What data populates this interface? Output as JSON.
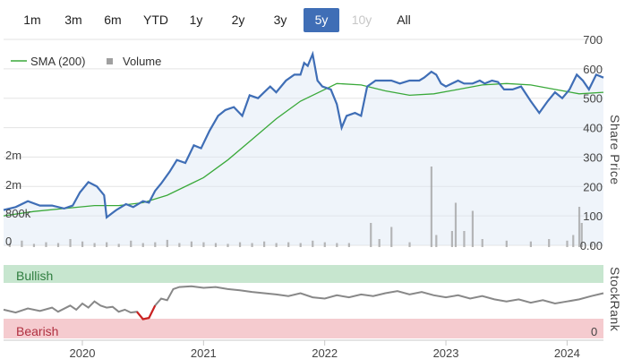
{
  "range_selector": {
    "buttons": [
      {
        "label": "1m",
        "state": "normal"
      },
      {
        "label": "3m",
        "state": "normal"
      },
      {
        "label": "6m",
        "state": "normal"
      },
      {
        "label": "YTD",
        "state": "normal"
      },
      {
        "label": "1y",
        "state": "normal"
      },
      {
        "label": "2y",
        "state": "normal"
      },
      {
        "label": "3y",
        "state": "normal"
      },
      {
        "label": "5y",
        "state": "active"
      },
      {
        "label": "10y",
        "state": "disabled"
      },
      {
        "label": "All",
        "state": "normal"
      }
    ],
    "active_color": "#3f6eb6"
  },
  "chart_data": [
    {
      "type": "line",
      "legend": [
        {
          "label": "SMA (200)",
          "color": "#3aa93a"
        },
        {
          "label": "Volume",
          "color": "#a0a0a0"
        }
      ],
      "ylabel": "Share Price",
      "ylim": [
        0,
        700
      ],
      "y_ticks": [
        "0.00",
        "100",
        "200",
        "300",
        "400",
        "500",
        "600",
        "700"
      ],
      "volume_ticks": [
        "0",
        "800k",
        "2m",
        "2m"
      ],
      "x_ticks": [
        "2020",
        "2021",
        "2022",
        "2023",
        "2024"
      ],
      "x_range": [
        2019.35,
        2024.3
      ],
      "grid": true,
      "series": [
        {
          "name": "Share Price",
          "color": "#3f6eb6",
          "points": [
            [
              2019.35,
              120
            ],
            [
              2019.45,
              130
            ],
            [
              2019.55,
              150
            ],
            [
              2019.65,
              135
            ],
            [
              2019.75,
              135
            ],
            [
              2019.85,
              125
            ],
            [
              2019.92,
              135
            ],
            [
              2019.98,
              180
            ],
            [
              2020.05,
              215
            ],
            [
              2020.12,
              200
            ],
            [
              2020.18,
              170
            ],
            [
              2020.2,
              95
            ],
            [
              2020.28,
              120
            ],
            [
              2020.36,
              140
            ],
            [
              2020.42,
              130
            ],
            [
              2020.5,
              150
            ],
            [
              2020.55,
              145
            ],
            [
              2020.6,
              185
            ],
            [
              2020.65,
              210
            ],
            [
              2020.72,
              250
            ],
            [
              2020.78,
              290
            ],
            [
              2020.85,
              280
            ],
            [
              2020.92,
              340
            ],
            [
              2020.98,
              330
            ],
            [
              2021.05,
              390
            ],
            [
              2021.12,
              440
            ],
            [
              2021.18,
              460
            ],
            [
              2021.25,
              470
            ],
            [
              2021.32,
              440
            ],
            [
              2021.38,
              510
            ],
            [
              2021.45,
              500
            ],
            [
              2021.5,
              520
            ],
            [
              2021.55,
              540
            ],
            [
              2021.6,
              520
            ],
            [
              2021.68,
              560
            ],
            [
              2021.75,
              580
            ],
            [
              2021.8,
              580
            ],
            [
              2021.83,
              620
            ],
            [
              2021.86,
              610
            ],
            [
              2021.88,
              630
            ],
            [
              2021.9,
              650
            ],
            [
              2021.94,
              560
            ],
            [
              2021.98,
              540
            ],
            [
              2022.05,
              530
            ],
            [
              2022.1,
              480
            ],
            [
              2022.14,
              400
            ],
            [
              2022.18,
              440
            ],
            [
              2022.25,
              450
            ],
            [
              2022.3,
              440
            ],
            [
              2022.35,
              540
            ],
            [
              2022.42,
              560
            ],
            [
              2022.5,
              560
            ],
            [
              2022.55,
              560
            ],
            [
              2022.62,
              550
            ],
            [
              2022.7,
              560
            ],
            [
              2022.78,
              560
            ],
            [
              2022.82,
              570
            ],
            [
              2022.88,
              590
            ],
            [
              2022.92,
              580
            ],
            [
              2022.96,
              550
            ],
            [
              2023.0,
              540
            ],
            [
              2023.05,
              550
            ],
            [
              2023.1,
              560
            ],
            [
              2023.15,
              550
            ],
            [
              2023.22,
              550
            ],
            [
              2023.28,
              560
            ],
            [
              2023.32,
              550
            ],
            [
              2023.38,
              560
            ],
            [
              2023.43,
              555
            ],
            [
              2023.48,
              530
            ],
            [
              2023.55,
              530
            ],
            [
              2023.62,
              540
            ],
            [
              2023.7,
              490
            ],
            [
              2023.77,
              450
            ],
            [
              2023.84,
              490
            ],
            [
              2023.9,
              520
            ],
            [
              2023.96,
              500
            ],
            [
              2024.02,
              530
            ],
            [
              2024.08,
              580
            ],
            [
              2024.13,
              560
            ],
            [
              2024.18,
              530
            ],
            [
              2024.24,
              580
            ],
            [
              2024.3,
              570
            ]
          ]
        },
        {
          "name": "SMA (200)",
          "color": "#3aa93a",
          "points": [
            [
              2019.35,
              100
            ],
            [
              2019.6,
              115
            ],
            [
              2019.85,
              125
            ],
            [
              2020.1,
              135
            ],
            [
              2020.3,
              135
            ],
            [
              2020.5,
              145
            ],
            [
              2020.7,
              170
            ],
            [
              2020.9,
              210
            ],
            [
              2021.0,
              230
            ],
            [
              2021.2,
              290
            ],
            [
              2021.4,
              360
            ],
            [
              2021.6,
              430
            ],
            [
              2021.8,
              490
            ],
            [
              2022.0,
              530
            ],
            [
              2022.1,
              550
            ],
            [
              2022.3,
              545
            ],
            [
              2022.5,
              525
            ],
            [
              2022.7,
              510
            ],
            [
              2022.9,
              515
            ],
            [
              2023.1,
              530
            ],
            [
              2023.3,
              545
            ],
            [
              2023.5,
              550
            ],
            [
              2023.7,
              545
            ],
            [
              2023.9,
              530
            ],
            [
              2024.1,
              515
            ],
            [
              2024.3,
              520
            ]
          ]
        }
      ],
      "volume_bars": [
        [
          2019.4,
          0.05
        ],
        [
          2019.5,
          0.08
        ],
        [
          2019.6,
          0.04
        ],
        [
          2019.7,
          0.06
        ],
        [
          2019.8,
          0.05
        ],
        [
          2019.9,
          0.1
        ],
        [
          2020.0,
          0.07
        ],
        [
          2020.1,
          0.05
        ],
        [
          2020.2,
          0.06
        ],
        [
          2020.3,
          0.04
        ],
        [
          2020.4,
          0.08
        ],
        [
          2020.5,
          0.05
        ],
        [
          2020.6,
          0.06
        ],
        [
          2020.7,
          0.09
        ],
        [
          2020.8,
          0.05
        ],
        [
          2020.9,
          0.07
        ],
        [
          2021.0,
          0.06
        ],
        [
          2021.1,
          0.05
        ],
        [
          2021.2,
          0.04
        ],
        [
          2021.3,
          0.06
        ],
        [
          2021.4,
          0.05
        ],
        [
          2021.5,
          0.07
        ],
        [
          2021.6,
          0.05
        ],
        [
          2021.7,
          0.06
        ],
        [
          2021.8,
          0.05
        ],
        [
          2021.9,
          0.08
        ],
        [
          2022.0,
          0.06
        ],
        [
          2022.1,
          0.05
        ],
        [
          2022.2,
          0.05
        ],
        [
          2022.38,
          0.3
        ],
        [
          2022.45,
          0.1
        ],
        [
          2022.55,
          0.25
        ],
        [
          2022.7,
          0.06
        ],
        [
          2022.88,
          1.0
        ],
        [
          2022.92,
          0.15
        ],
        [
          2023.05,
          0.2
        ],
        [
          2023.08,
          0.55
        ],
        [
          2023.15,
          0.2
        ],
        [
          2023.22,
          0.45
        ],
        [
          2023.3,
          0.1
        ],
        [
          2023.5,
          0.08
        ],
        [
          2023.7,
          0.07
        ],
        [
          2023.85,
          0.1
        ],
        [
          2024.0,
          0.08
        ],
        [
          2024.05,
          0.15
        ],
        [
          2024.1,
          0.5
        ],
        [
          2024.12,
          0.3
        ],
        [
          2024.2,
          0.06
        ]
      ]
    },
    {
      "type": "line",
      "ylabel": "StockRank",
      "band_labels": {
        "top": "Bullish",
        "bottom": "Bearish"
      },
      "y_ticks": [
        "0"
      ],
      "bullish_color": "#c7e6cf",
      "bearish_color": "#f5cbcf",
      "series": [
        {
          "name": "StockRank",
          "color": "#888888",
          "bearish_color": "#cc2222",
          "points": [
            [
              2019.35,
              0.35
            ],
            [
              2019.45,
              0.28
            ],
            [
              2019.55,
              0.38
            ],
            [
              2019.65,
              0.32
            ],
            [
              2019.75,
              0.4
            ],
            [
              2019.8,
              0.3
            ],
            [
              2019.9,
              0.45
            ],
            [
              2019.95,
              0.35
            ],
            [
              2020.0,
              0.5
            ],
            [
              2020.05,
              0.4
            ],
            [
              2020.1,
              0.55
            ],
            [
              2020.15,
              0.45
            ],
            [
              2020.2,
              0.4
            ],
            [
              2020.25,
              0.42
            ],
            [
              2020.3,
              0.3
            ],
            [
              2020.35,
              0.35
            ],
            [
              2020.4,
              0.28
            ],
            [
              2020.45,
              0.3
            ],
            [
              2020.5,
              0.12
            ],
            [
              2020.55,
              0.15
            ],
            [
              2020.6,
              0.45
            ],
            [
              2020.65,
              0.62
            ],
            [
              2020.7,
              0.58
            ],
            [
              2020.75,
              0.85
            ],
            [
              2020.8,
              0.9
            ],
            [
              2020.9,
              0.92
            ],
            [
              2021.0,
              0.88
            ],
            [
              2021.1,
              0.9
            ],
            [
              2021.2,
              0.85
            ],
            [
              2021.3,
              0.82
            ],
            [
              2021.4,
              0.78
            ],
            [
              2021.5,
              0.75
            ],
            [
              2021.6,
              0.72
            ],
            [
              2021.7,
              0.68
            ],
            [
              2021.8,
              0.75
            ],
            [
              2021.9,
              0.65
            ],
            [
              2022.0,
              0.62
            ],
            [
              2022.1,
              0.7
            ],
            [
              2022.2,
              0.65
            ],
            [
              2022.3,
              0.72
            ],
            [
              2022.4,
              0.68
            ],
            [
              2022.5,
              0.75
            ],
            [
              2022.6,
              0.8
            ],
            [
              2022.7,
              0.72
            ],
            [
              2022.8,
              0.78
            ],
            [
              2022.9,
              0.7
            ],
            [
              2023.0,
              0.65
            ],
            [
              2023.1,
              0.7
            ],
            [
              2023.2,
              0.62
            ],
            [
              2023.3,
              0.68
            ],
            [
              2023.4,
              0.6
            ],
            [
              2023.5,
              0.55
            ],
            [
              2023.6,
              0.6
            ],
            [
              2023.7,
              0.52
            ],
            [
              2023.8,
              0.58
            ],
            [
              2023.9,
              0.5
            ],
            [
              2024.0,
              0.55
            ],
            [
              2024.1,
              0.6
            ],
            [
              2024.2,
              0.68
            ],
            [
              2024.3,
              0.75
            ]
          ]
        }
      ]
    }
  ]
}
